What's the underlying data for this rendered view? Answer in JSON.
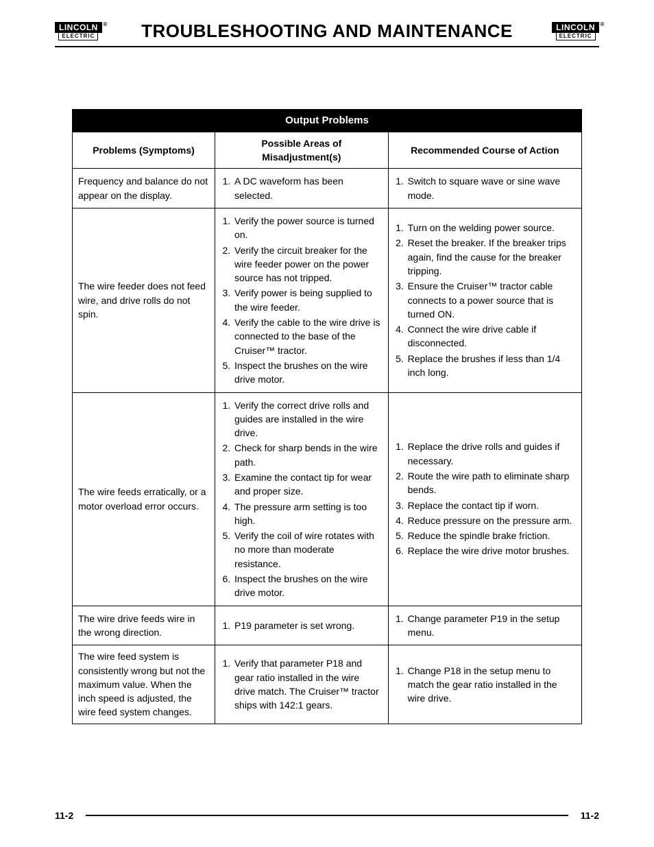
{
  "header": {
    "logo_top": "LINCOLN",
    "logo_bottom": "ELECTRIC",
    "title": "TROUBLESHOOTING AND MAINTENANCE"
  },
  "table": {
    "caption": "Output Problems",
    "columns": {
      "problems": "Problems (Symptoms)",
      "misadjustment": "Possible Areas of Misadjustment(s)",
      "recommended": "Recommended Course of Action"
    },
    "rows": [
      {
        "symptom": "Frequency and balance do not appear on the display.",
        "misadjustment": [
          "A DC waveform has been selected."
        ],
        "recommended": [
          "Switch to square wave or sine wave mode."
        ]
      },
      {
        "symptom": "The wire feeder does not feed wire, and drive rolls do not spin.",
        "misadjustment": [
          "Verify the power source is turned on.",
          "Verify the circuit breaker for the wire feeder power on the power source has not tripped.",
          "Verify power is being supplied to the wire feeder.",
          "Verify the cable to the wire drive is connected to the base of the Cruiser™ tractor.",
          "Inspect the brushes on the wire drive motor."
        ],
        "recommended": [
          "Turn on the welding power source.",
          "Reset the breaker. If the breaker trips again, find the cause for the breaker tripping.",
          "Ensure the Cruiser™ tractor cable connects to a power source that is turned ON.",
          "Connect the wire drive cable if disconnected.",
          "Replace the brushes if less than 1/4 inch long."
        ],
        "spaced": true
      },
      {
        "symptom": "The wire feeds erratically, or a motor overload error occurs.",
        "misadjustment": [
          "Verify the correct drive rolls and guides are installed in the wire drive.",
          "Check for sharp bends in the wire path.",
          "Examine the contact tip for wear and proper size.",
          "The pressure arm setting is too high.",
          "Verify the coil of wire rotates with no more than moderate resistance.",
          "Inspect the brushes on the wire drive motor."
        ],
        "recommended": [
          "Replace the drive rolls and guides if necessary.",
          "Route the wire path to eliminate sharp bends.",
          "Replace the contact tip if worn.",
          "Reduce pressure on the pressure arm.",
          "Reduce the spindle brake friction.",
          "Replace the wire drive motor brushes."
        ],
        "spaced": true
      },
      {
        "symptom": "The wire drive feeds wire in the wrong direction.",
        "misadjustment": [
          "P19 parameter is set wrong."
        ],
        "recommended": [
          "Change parameter P19 in the setup menu."
        ]
      },
      {
        "symptom": "The wire feed system is consistently wrong but not the maximum value. When the inch speed is adjusted, the wire feed system changes.",
        "misadjustment": [
          "Verify that parameter P18 and gear ratio installed in the wire drive match. The Cruiser™ tractor ships with 142:1 gears."
        ],
        "recommended": [
          "Change P18 in the setup menu to match the gear ratio installed in the wire drive."
        ]
      }
    ]
  },
  "footer": {
    "page_left": "11-2",
    "page_right": "11-2"
  }
}
